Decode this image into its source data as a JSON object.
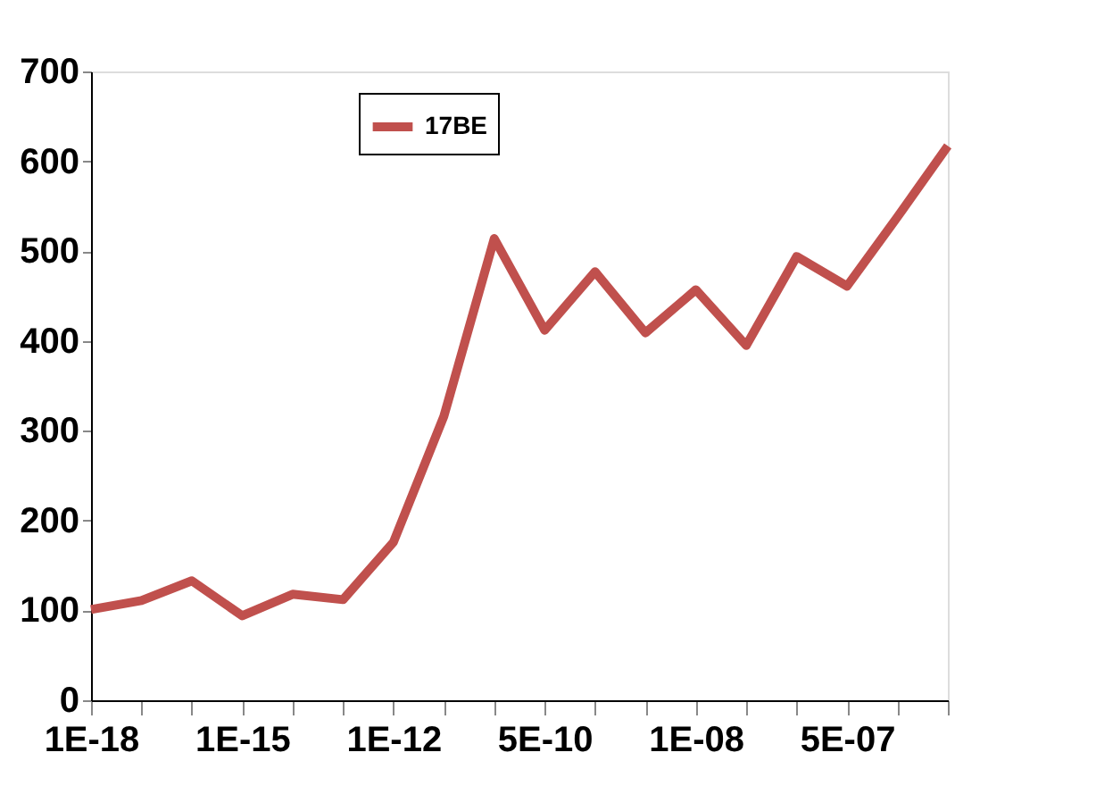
{
  "chart_data": {
    "type": "line",
    "categories": [
      "1E-18",
      null,
      null,
      "1E-15",
      null,
      null,
      "1E-12",
      null,
      null,
      "5E-10",
      null,
      null,
      "1E-08",
      null,
      null,
      "5E-07",
      null,
      null
    ],
    "series": [
      {
        "name": "17BE",
        "color": "#c0504d",
        "values": [
          101,
          111,
          133,
          94,
          118,
          112,
          176,
          316,
          514,
          412,
          477,
          409,
          457,
          395,
          494,
          461,
          538,
          617
        ]
      }
    ],
    "ylim": [
      0,
      700
    ],
    "yticks": [
      0,
      100,
      200,
      300,
      400,
      500,
      600,
      700
    ],
    "grid": false,
    "legend": "top",
    "marker": "none",
    "line_style": "solid"
  }
}
